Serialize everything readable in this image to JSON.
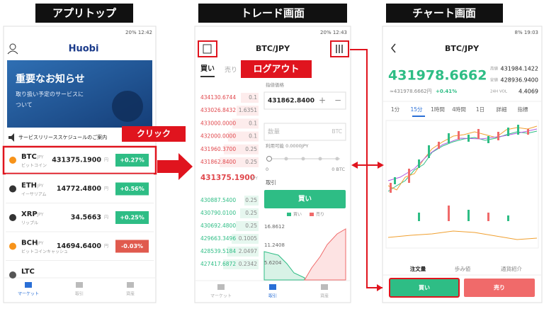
{
  "headers": [
    "アプリトップ",
    "トレード画面",
    "チャート画面"
  ],
  "callouts": {
    "click": "クリック",
    "logout": "ログアウト"
  },
  "app_top": {
    "status": "20% 12:42",
    "logo": "Huobi",
    "banner": {
      "title": "重要なお知らせ",
      "lines": [
        "取り扱い予定のサービスに",
        "ついて"
      ]
    },
    "notice": "サービスリリーススケジュールのご案内",
    "quote_unit": "JPY",
    "price_unit": "円",
    "coins": [
      {
        "symbol": "BTC",
        "name": "ビットコイン",
        "price": "431375.1900",
        "change": "+0.27%"
      },
      {
        "symbol": "ETH",
        "name": "イーサリアム",
        "price": "14772.4800",
        "change": "+0.56%"
      },
      {
        "symbol": "XRP",
        "name": "リップル",
        "price": "34.5663",
        "change": "+0.25%"
      },
      {
        "symbol": "BCH",
        "name": "ビットコインキャッシュ",
        "price": "14694.6400",
        "change": "-0.03%"
      },
      {
        "symbol": "LTC"
      }
    ],
    "nav": [
      "マーケット",
      "取引",
      "資産"
    ]
  },
  "trade": {
    "status": "20% 12:43",
    "pair": "BTC/JPY",
    "tabs": [
      "買い",
      "売り"
    ],
    "asks": [
      [
        "434130.6744",
        "0.1"
      ],
      [
        "433026.8432",
        "1.6351"
      ],
      [
        "433000.0000",
        "0.1"
      ],
      [
        "432000.0000",
        "0.1"
      ],
      [
        "431960.3700",
        "0.25"
      ],
      [
        "431862.8400",
        "0.25"
      ]
    ],
    "last_price": "431375.1900",
    "last_unit": "JPY",
    "bids": [
      [
        "430887.5400",
        "0.25"
      ],
      [
        "430790.0100",
        "0.25"
      ],
      [
        "430692.4800",
        "0.25"
      ],
      [
        "429663.3496",
        "0.1005"
      ],
      [
        "428539.5184",
        "2.0497"
      ],
      [
        "427417.6872",
        "0.2342"
      ]
    ],
    "form": {
      "price_label": "指値価格",
      "price": "431862.8400",
      "qty_placeholder": "数量",
      "qty_unit": "BTC",
      "available": "利用可能 0.0000JPY",
      "slider_min": "0",
      "slider_total": "0 BTC",
      "trade_label": "取引",
      "buy_button": "買い",
      "legend": [
        "買い",
        "売り"
      ],
      "depth_labels": [
        "16.8612",
        "11.2408",
        "5.6204"
      ]
    },
    "nav": [
      "マーケット",
      "取引",
      "資産"
    ]
  },
  "chart_screen": {
    "status": "8% 19:03",
    "pair": "BTC/JPY",
    "price": "431978.6662",
    "sub": "≈431978.6662円",
    "change": "+0.41%",
    "stats": [
      [
        "高値",
        "431984.1422"
      ],
      [
        "安値",
        "428936.9400"
      ],
      [
        "24H VOL",
        "4.4069"
      ]
    ],
    "timeframes": [
      "1分",
      "15分",
      "1時間",
      "4時間",
      "1日",
      "詳細",
      "指標"
    ],
    "tabs": [
      "注文量",
      "歩み値",
      "通貨紹介"
    ],
    "buy": "買い",
    "sell": "売り"
  }
}
